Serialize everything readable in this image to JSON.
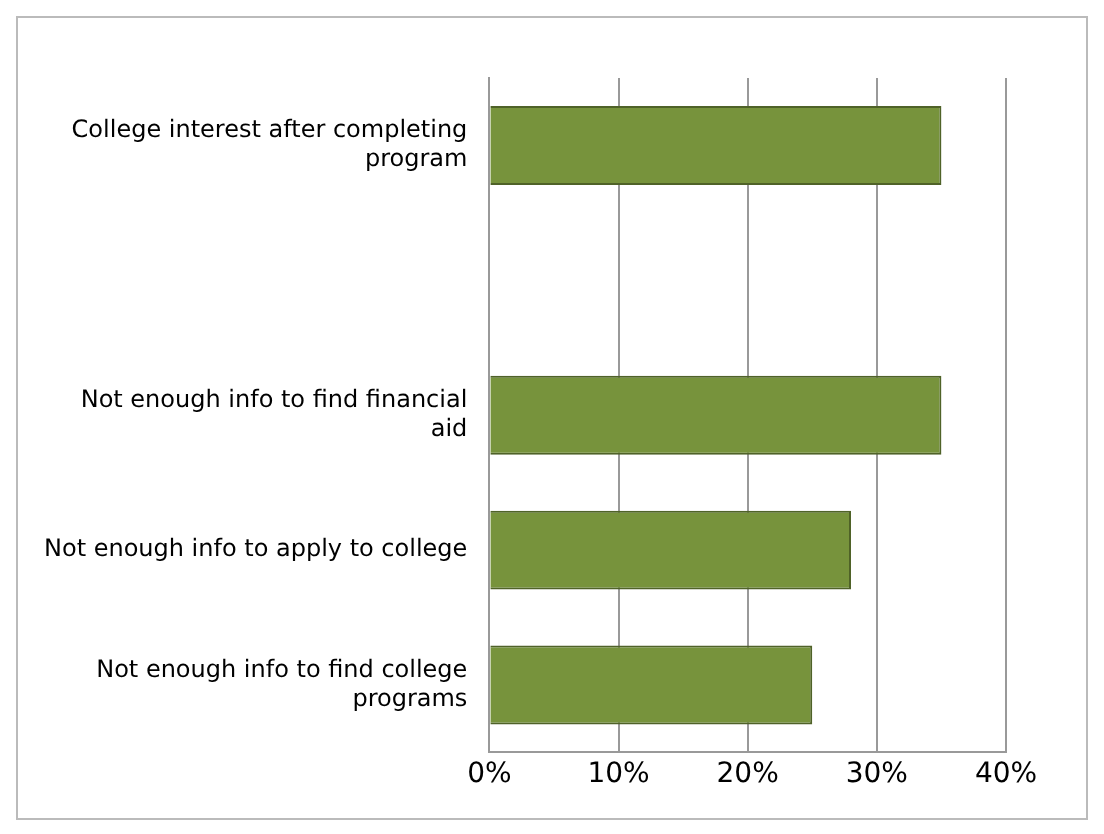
{
  "chart_data": {
    "type": "bar",
    "orientation": "horizontal",
    "categories": [
      "College interest after completing program",
      null,
      "Not enough info to find financial aid",
      "Not enough info to apply to college",
      "Not enough info to find college programs"
    ],
    "values": [
      35,
      null,
      35,
      28,
      25
    ],
    "color": "#77933c",
    "xlim": [
      0,
      40
    ],
    "xticks": [
      {
        "value": 0,
        "label": "0%"
      },
      {
        "value": 10,
        "label": "10%"
      },
      {
        "value": 20,
        "label": "20%"
      },
      {
        "value": 30,
        "label": "30%"
      },
      {
        "value": 40,
        "label": "40%"
      }
    ],
    "grid": "x",
    "legend": false
  }
}
